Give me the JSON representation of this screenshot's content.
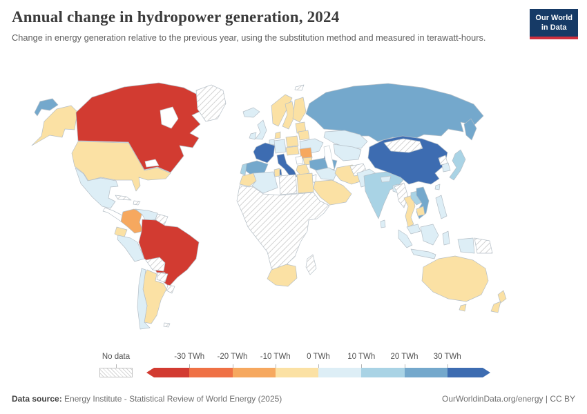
{
  "header": {
    "title": "Annual change in hydropower generation, 2024",
    "subtitle": "Change in energy generation relative to the previous year, using the substitution method and measured in terawatt-hours.",
    "logo": {
      "line1": "Our World",
      "line2": "in Data",
      "background": "#163a66",
      "accent": "#cf303e"
    }
  },
  "legend": {
    "no_data_label": "No data",
    "ticks": [
      "-30 TWh",
      "-20 TWh",
      "-10 TWh",
      "0 TWh",
      "10 TWh",
      "20 TWh",
      "30 TWh"
    ]
  },
  "footer": {
    "source_label": "Data source:",
    "source_text": " Energy Institute - Statistical Review of World Energy (2025)",
    "credit": "OurWorldinData.org/energy | CC BY"
  },
  "chart_data": {
    "type": "choropleth",
    "title": "Annual change in hydropower generation, 2024",
    "year": 2024,
    "unit": "TWh",
    "legend_position": "bottom",
    "no_data": {
      "label": "No data",
      "pattern": "diagonal-hatch"
    },
    "bins": [
      {
        "range": "less than -30",
        "label": "Less than -30 TWh",
        "color": "#d23b31"
      },
      {
        "range": "-30 to -20",
        "label": "-30 to -20 TWh",
        "color": "#ef7145"
      },
      {
        "range": "-20 to -10",
        "label": "-20 to -10 TWh",
        "color": "#f6a85f"
      },
      {
        "range": "-10 to 0",
        "label": "-10 to 0 TWh",
        "color": "#fbe1a4"
      },
      {
        "range": "0 to 10",
        "label": "0 to 10 TWh",
        "color": "#ddeef6"
      },
      {
        "range": "10 to 20",
        "label": "10 to 20 TWh",
        "color": "#a9d3e5"
      },
      {
        "range": "20 to 30",
        "label": "20 to 30 TWh",
        "color": "#74a8cc"
      },
      {
        "range": "more than 30",
        "label": "More than 30 TWh",
        "color": "#3d6cb1"
      }
    ],
    "countries": {
      "canada": 0,
      "united-states": 3,
      "mexico": 4,
      "greenland": "nd",
      "central-america": "blank",
      "cuba": "nd",
      "hispaniola": "nd",
      "colombia": 2,
      "venezuela": 4,
      "guyanas": "nd",
      "ecuador": 3,
      "peru": 4,
      "brazil": 0,
      "bolivia": "nd",
      "paraguay": "nd",
      "uruguay": "nd",
      "argentina": 3,
      "chile": 4,
      "falkland-islands": "nd",
      "iceland": 4,
      "united-kingdom": 4,
      "ireland": 4,
      "norway": 3,
      "sweden": 3,
      "finland": 3,
      "denmark": 3,
      "baltic-states": 3,
      "germany": 4,
      "benelux": 4,
      "poland": 3,
      "belarus": 3,
      "ukraine": 4,
      "central-europe": 3,
      "romania": 2,
      "western-balkans": "blank",
      "bulgaria": 3,
      "greece": 3,
      "france": 7,
      "spain": 6,
      "portugal": 5,
      "italy": 7,
      "turkey": 6,
      "azerbaijan": 7,
      "russia": 6,
      "svalbard": "nd",
      "kazakhstan": 4,
      "central-asia": 4,
      "iraq-syria": 4,
      "iran": 3,
      "saudi-arabia": 3,
      "israel-jordan": "blank",
      "morocco": 3,
      "algeria": 4,
      "tunisia": 3,
      "libya": "nd",
      "egypt": 3,
      "africa-other": "nd",
      "south-africa": 3,
      "madagascar": "nd",
      "afghanistan": "nd",
      "pakistan": 4,
      "india": 5,
      "nepal": 4,
      "bangladesh": 4,
      "sri-lanka": 4,
      "china": 7,
      "mongolia": "nd",
      "north-korea": "nd",
      "south-korea": 4,
      "japan": 5,
      "taiwan": 4,
      "myanmar": "nd",
      "thailand": 3,
      "laos": 5,
      "vietnam": 6,
      "cambodia": 3,
      "malaysia": 4,
      "indonesia": 4,
      "philippines": 4,
      "papua-new-guinea": "nd",
      "australia": 3,
      "new-zealand": 3
    }
  }
}
